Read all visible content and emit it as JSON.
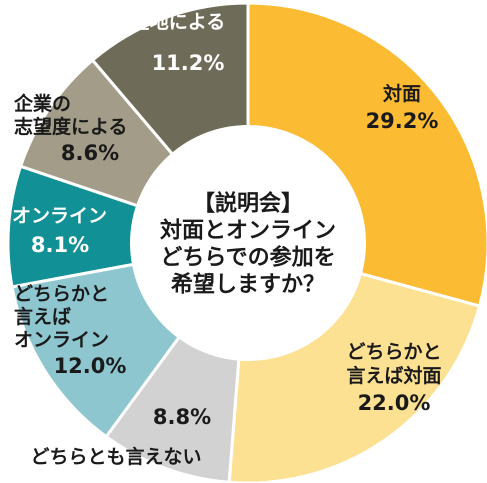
{
  "chart_data": {
    "type": "pie",
    "title": "【説明会】対面とオンラインどちらでの参加を希望しますか？",
    "title_lines": [
      "【説明会】",
      "対面とオンライン",
      "どちらでの参加を",
      "希望しますか？"
    ],
    "unit": "%",
    "slices": [
      {
        "label": "対面",
        "label_lines": [
          "対面"
        ],
        "value": 29.2,
        "value_text": "29.2%",
        "color": "#fbbb33",
        "text_color": "#1a1a1a"
      },
      {
        "label": "どちらかと言えば対面",
        "label_lines": [
          "どちらかと",
          "言えば対面"
        ],
        "value": 22.0,
        "value_text": "22.0%",
        "color": "#fde193",
        "text_color": "#1a1a1a"
      },
      {
        "label": "どちらとも言えない",
        "label_lines": [
          "どちらとも言えない"
        ],
        "value": 8.8,
        "value_text": "8.8%",
        "color": "#d2d2d2",
        "text_color": "#1a1a1a"
      },
      {
        "label": "どちらかと言えばオンライン",
        "label_lines": [
          "どちらかと",
          "言えば",
          "オンライン"
        ],
        "value": 12.0,
        "value_text": "12.0%",
        "color": "#8dc6cf",
        "text_color": "#1a1a1a"
      },
      {
        "label": "オンライン",
        "label_lines": [
          "オンライン"
        ],
        "value": 8.1,
        "value_text": "8.1%",
        "color": "#119096",
        "text_color": "#ffffff"
      },
      {
        "label": "企業の志望度による",
        "label_lines": [
          "企業の",
          "志望度による"
        ],
        "value": 8.6,
        "value_text": "8.6%",
        "color": "#a39c88",
        "text_color": "#1a1a1a"
      },
      {
        "label": "企業の所在地による",
        "label_lines": [
          "企業の所在地による"
        ],
        "value": 11.2,
        "value_text": "11.2%",
        "color": "#6e6b59",
        "text_color": "#ffffff"
      }
    ]
  }
}
